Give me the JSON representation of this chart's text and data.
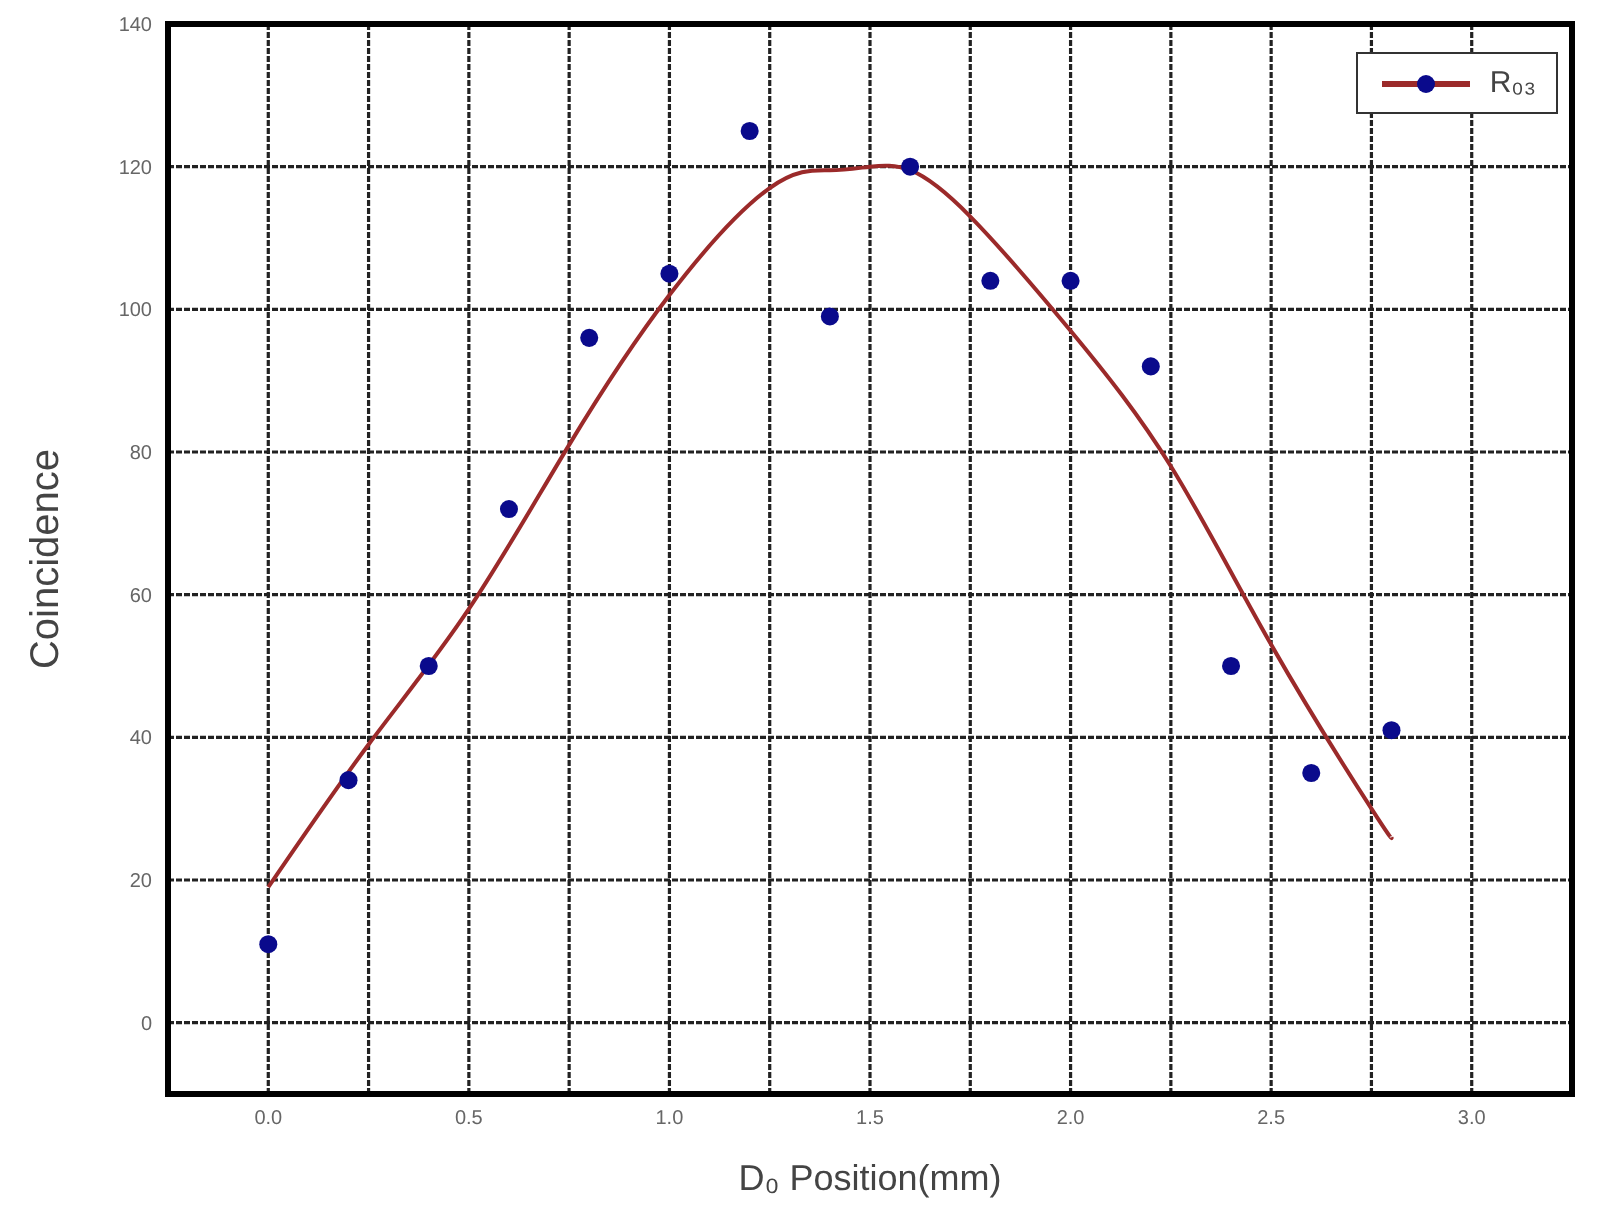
{
  "chart_data": {
    "type": "scatter",
    "xlabel": "D₀ Position(mm)",
    "ylabel": "Coincidence",
    "xlim": [
      -0.25,
      3.25
    ],
    "ylim": [
      -10,
      140
    ],
    "xticks": [
      {
        "value": 0,
        "label": "0.0"
      },
      {
        "value": 0.25,
        "label": null
      },
      {
        "value": 0.5,
        "label": "0.5"
      },
      {
        "value": 0.75,
        "label": null
      },
      {
        "value": 1,
        "label": "1.0"
      },
      {
        "value": 1.25,
        "label": null
      },
      {
        "value": 1.5,
        "label": "1.5"
      },
      {
        "value": 1.75,
        "label": null
      },
      {
        "value": 2,
        "label": "2.0"
      },
      {
        "value": 2.25,
        "label": null
      },
      {
        "value": 2.5,
        "label": "2.5"
      },
      {
        "value": 2.75,
        "label": null
      },
      {
        "value": 3,
        "label": "3.0"
      }
    ],
    "yticks": [
      0,
      20,
      40,
      60,
      80,
      100,
      120,
      140
    ],
    "grid": true,
    "legend": "top right",
    "series": [
      {
        "name": "R₀₃",
        "marker": "circle",
        "color": "#0a0a8c",
        "x": [
          0,
          0.2,
          0.4,
          0.6,
          0.8,
          1.0,
          1.2,
          1.4,
          1.6,
          1.8,
          2.0,
          2.2,
          2.4,
          2.6,
          2.8
        ],
        "values": [
          11,
          34,
          50,
          72,
          96,
          105,
          125,
          99,
          120,
          104,
          104,
          92,
          50,
          35,
          41
        ]
      },
      {
        "type": "line",
        "marker": "none",
        "color": "#9b2a2a",
        "x": [
          0,
          0.25,
          0.5,
          0.75,
          1.0,
          1.25,
          1.4,
          1.5,
          1.6,
          1.75,
          2.0,
          2.25,
          2.5,
          2.75,
          2.8
        ],
        "values": [
          19,
          39,
          58,
          81,
          102,
          117,
          119.5,
          120,
          119.5,
          113,
          97,
          78,
          53,
          30,
          26
        ]
      }
    ]
  }
}
